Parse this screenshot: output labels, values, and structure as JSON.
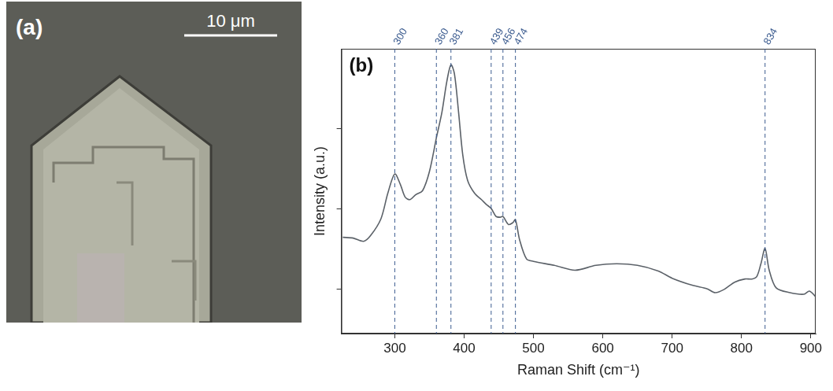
{
  "panel_a": {
    "label": "(a)",
    "scale_bar": "10 μm"
  },
  "chart_data": {
    "type": "line",
    "title": "(b)",
    "x_label": "Raman Shift (cm⁻¹)",
    "y_label": "Intensity (a.u.)",
    "x": [
      225,
      240,
      255,
      265,
      280,
      290,
      300,
      308,
      315,
      322,
      330,
      340,
      350,
      360,
      368,
      375,
      381,
      386,
      392,
      398,
      405,
      415,
      425,
      432,
      439,
      446,
      452,
      456,
      464,
      470,
      474,
      480,
      490,
      500,
      530,
      560,
      590,
      620,
      650,
      680,
      700,
      730,
      750,
      762,
      775,
      790,
      805,
      815,
      822,
      828,
      834,
      840,
      850,
      870,
      890,
      898,
      907
    ],
    "values": [
      1.65,
      1.64,
      1.6,
      1.67,
      1.88,
      2.2,
      2.44,
      2.31,
      2.15,
      2.12,
      2.18,
      2.23,
      2.47,
      2.89,
      3.21,
      3.59,
      3.8,
      3.69,
      3.21,
      2.68,
      2.36,
      2.2,
      2.12,
      2.06,
      2.01,
      1.91,
      1.9,
      1.91,
      1.81,
      1.83,
      1.87,
      1.62,
      1.38,
      1.35,
      1.3,
      1.24,
      1.3,
      1.32,
      1.3,
      1.23,
      1.14,
      1.05,
      1.01,
      0.96,
      1.0,
      1.09,
      1.13,
      1.13,
      1.16,
      1.32,
      1.51,
      1.24,
      1.02,
      0.96,
      0.94,
      0.98,
      0.91
    ],
    "color": "#5b6168",
    "peaks": [
      300,
      360,
      381,
      439,
      456,
      474,
      834
    ],
    "peak_color": "#3b5b8f",
    "line_style": "dashed",
    "xlim": [
      223,
      907
    ],
    "xticks": [
      300,
      400,
      500,
      600,
      700,
      800,
      900
    ],
    "ylim": [
      0.45,
      4.0
    ],
    "yticks": [
      1,
      2,
      3
    ],
    "tick_labels": "x",
    "grid": false
  }
}
